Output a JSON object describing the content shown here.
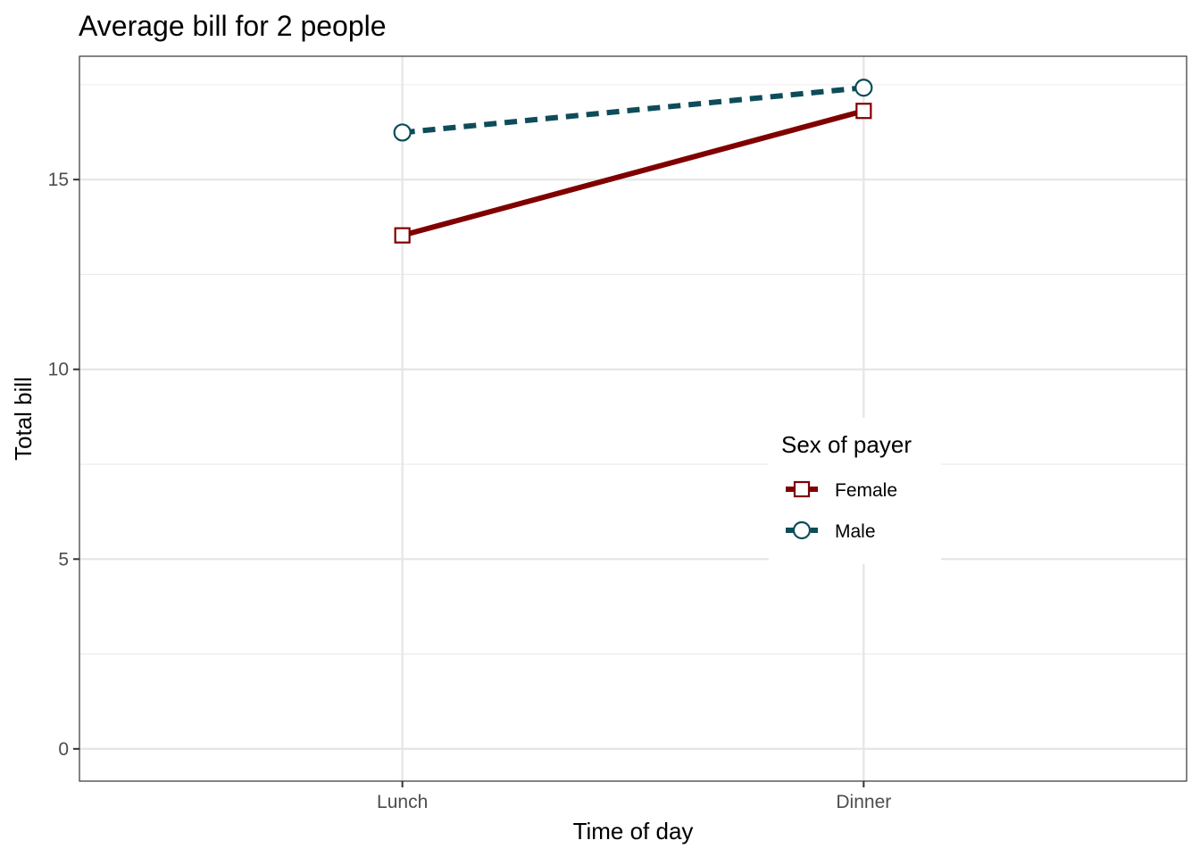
{
  "chart_data": {
    "type": "line",
    "title": "Average bill for 2 people",
    "xlabel": "Time of day",
    "ylabel": "Total bill",
    "categories": [
      "Lunch",
      "Dinner"
    ],
    "yticks": [
      0,
      5,
      10,
      15
    ],
    "ylim": [
      -0.85,
      18.25
    ],
    "grid": true,
    "series": [
      {
        "name": "Female",
        "values": [
          13.53,
          16.81
        ],
        "color": "#800000",
        "line_style": "solid",
        "marker": "square"
      },
      {
        "name": "Male",
        "values": [
          16.24,
          17.42
        ],
        "color": "#0e4c5a",
        "line_style": "dashed",
        "marker": "circle"
      }
    ],
    "legend": {
      "title": "Sex of payer",
      "placement": "inside-right"
    }
  }
}
